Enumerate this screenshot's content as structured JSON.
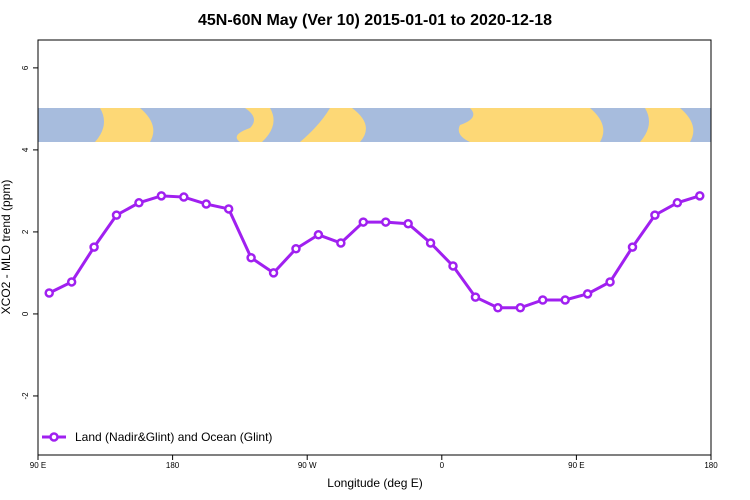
{
  "chart_data": {
    "type": "line",
    "title": "45N-60N May (Ver 10)   2015-01-01 to 2020-12-18",
    "x_label": "Longitude (deg E)",
    "y_label": "XCO2 - MLO trend (ppm)",
    "x": [
      97.5,
      112.5,
      127.5,
      142.5,
      157.5,
      172.5,
      187.5,
      202.5,
      217.5,
      232.5,
      247.5,
      262.5,
      277.5,
      292.5,
      307.5,
      322.5,
      337.5,
      352.5,
      367.5,
      382.5,
      397.5,
      412.5,
      427.5,
      442.5,
      457.5,
      472.5,
      487.5,
      502.5,
      517.5,
      532.5
    ],
    "series": [
      {
        "name": "Land (Nadir&Glint) and Ocean (Glint)",
        "color": "#a020f0",
        "values": [
          0.51,
          0.78,
          1.63,
          2.41,
          2.71,
          2.88,
          2.85,
          2.68,
          2.56,
          1.37,
          1.0,
          1.59,
          1.93,
          1.73,
          2.24,
          2.24,
          2.2,
          1.73,
          1.17,
          0.41,
          0.15,
          0.15,
          0.34,
          0.34,
          0.49,
          0.78,
          1.63,
          2.41,
          2.71,
          2.88
        ]
      }
    ],
    "xlim": [
      90,
      540
    ],
    "xticks": [
      {
        "value": 90,
        "label": "90 E"
      },
      {
        "value": 180,
        "label": "180"
      },
      {
        "value": 270,
        "label": "90 W"
      },
      {
        "value": 360,
        "label": "0"
      },
      {
        "value": 450,
        "label": "90 E"
      },
      {
        "value": 540,
        "label": "180"
      }
    ],
    "ylim": [
      -3.44,
      6.68
    ],
    "yticks": [
      -2,
      0,
      2,
      4,
      6
    ],
    "legend": "bottom-left"
  }
}
